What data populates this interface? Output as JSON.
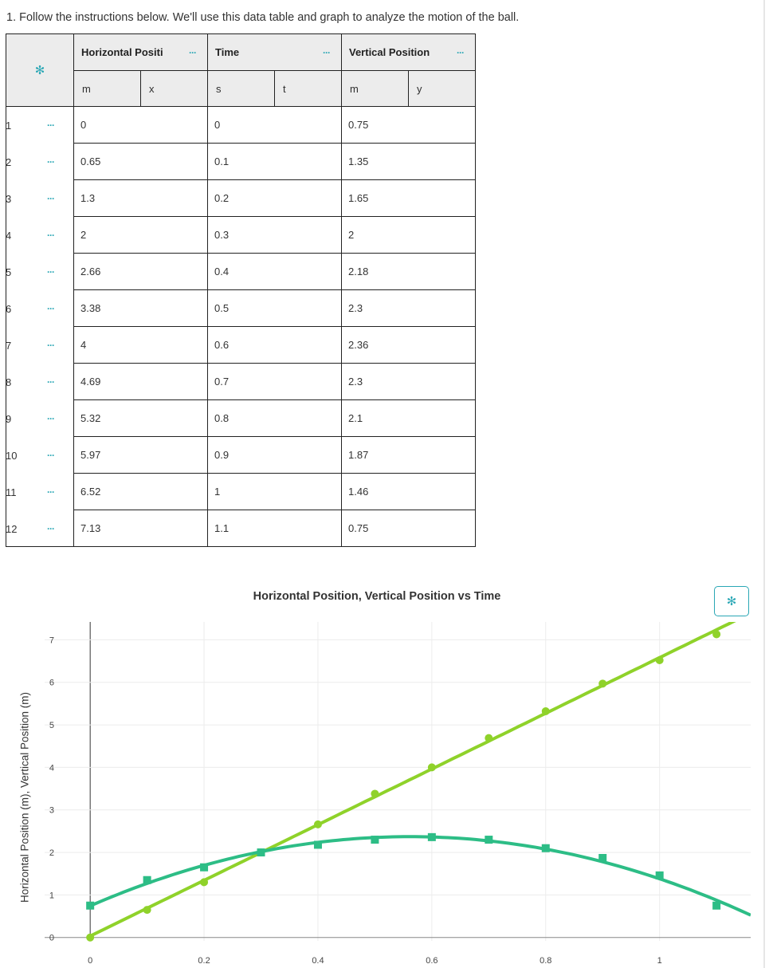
{
  "instructions": "1. Follow the instructions below. We'll use this data table and graph to analyze the motion of the ball.",
  "table": {
    "columns": [
      {
        "name": "Horizontal Positi",
        "unit": "m",
        "var": "x"
      },
      {
        "name": "Time",
        "unit": "s",
        "var": "t"
      },
      {
        "name": "Vertical Position",
        "unit": "m",
        "var": "y"
      }
    ],
    "menu_glyph": "···",
    "rows": [
      {
        "n": "1",
        "x": "0",
        "t": "0",
        "y": "0.75"
      },
      {
        "n": "2",
        "x": "0.65",
        "t": "0.1",
        "y": "1.35"
      },
      {
        "n": "3",
        "x": "1.3",
        "t": "0.2",
        "y": "1.65"
      },
      {
        "n": "4",
        "x": "2",
        "t": "0.3",
        "y": "2"
      },
      {
        "n": "5",
        "x": "2.66",
        "t": "0.4",
        "y": "2.18"
      },
      {
        "n": "6",
        "x": "3.38",
        "t": "0.5",
        "y": "2.3"
      },
      {
        "n": "7",
        "x": "4",
        "t": "0.6",
        "y": "2.36"
      },
      {
        "n": "8",
        "x": "4.69",
        "t": "0.7",
        "y": "2.3"
      },
      {
        "n": "9",
        "x": "5.32",
        "t": "0.8",
        "y": "2.1"
      },
      {
        "n": "10",
        "x": "5.97",
        "t": "0.9",
        "y": "1.87"
      },
      {
        "n": "11",
        "x": "6.52",
        "t": "1",
        "y": "1.46"
      },
      {
        "n": "12",
        "x": "7.13",
        "t": "1.1",
        "y": "0.75"
      }
    ]
  },
  "colors": {
    "accent": "#2aa7b5",
    "series_horizontal": "#8fd22a",
    "series_vertical": "#2dbd86"
  },
  "chart_data": {
    "type": "scatter",
    "title": "Horizontal Position, Vertical Position vs Time",
    "ylabel": "Horizontal Position (m), Vertical Position (m)",
    "xlabel": "",
    "xlim": [
      -0.08,
      1.16
    ],
    "ylim": [
      -0.08,
      7.42
    ],
    "xticks": [
      "0",
      "0.2",
      "0.4",
      "0.6",
      "0.8",
      "1"
    ],
    "yticks": [
      "0",
      "1",
      "2",
      "3",
      "4",
      "5",
      "6",
      "7"
    ],
    "grid": true,
    "x": [
      0,
      0.1,
      0.2,
      0.3,
      0.4,
      0.5,
      0.6,
      0.7,
      0.8,
      0.9,
      1.0,
      1.1
    ],
    "series": [
      {
        "values": [
          0,
          0.65,
          1.3,
          2,
          2.66,
          3.38,
          4,
          4.69,
          5.32,
          5.97,
          6.52,
          7.13
        ],
        "marker": "circle",
        "fit": "linear"
      },
      {
        "values": [
          0.75,
          1.35,
          1.65,
          2,
          2.18,
          2.3,
          2.36,
          2.3,
          2.1,
          1.87,
          1.46,
          0.75
        ],
        "marker": "square",
        "fit": "quadratic"
      }
    ]
  }
}
